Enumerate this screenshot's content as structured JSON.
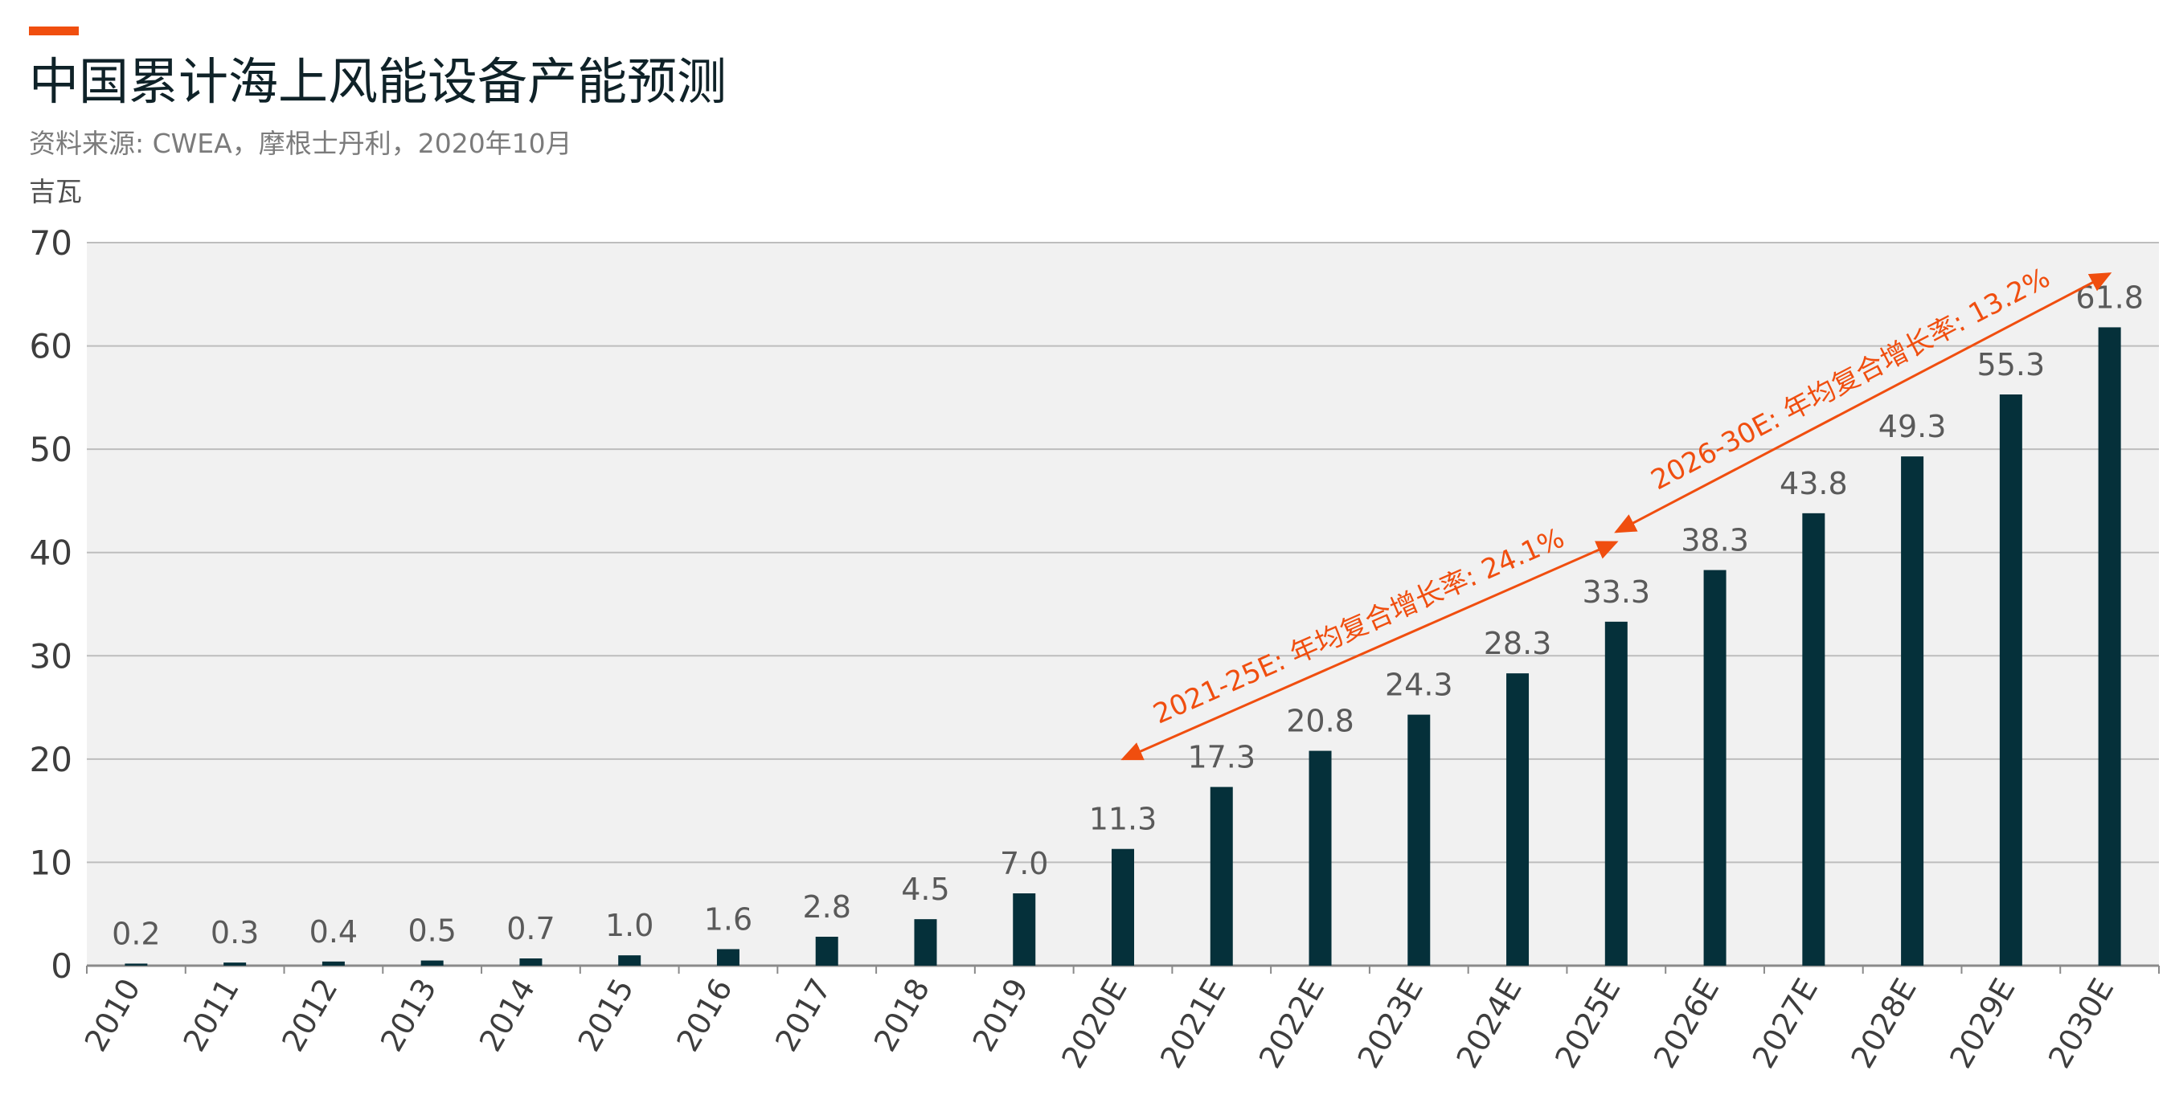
{
  "header": {
    "title": "中国累计海上风能设备产能预测",
    "source": "资料来源: CWEA，摩根士丹利，2020年10月",
    "unit": "吉瓦"
  },
  "colors": {
    "accent": "#f04e0f",
    "bar": "#05303a",
    "plot_background": "#f1f1f1",
    "grid": "#bdbdbd"
  },
  "chart_data": {
    "type": "bar",
    "categories": [
      "2010",
      "2011",
      "2012",
      "2013",
      "2014",
      "2015",
      "2016",
      "2017",
      "2018",
      "2019",
      "2020E",
      "2021E",
      "2022E",
      "2023E",
      "2024E",
      "2025E",
      "2026E",
      "2027E",
      "2028E",
      "2029E",
      "2030E"
    ],
    "values": [
      0.2,
      0.3,
      0.4,
      0.5,
      0.7,
      1.0,
      1.6,
      2.8,
      4.5,
      7.0,
      11.3,
      17.3,
      20.8,
      24.3,
      28.3,
      33.3,
      38.3,
      43.8,
      49.3,
      55.3,
      61.8
    ],
    "value_labels": [
      "0.2",
      "0.3",
      "0.4",
      "0.5",
      "0.7",
      "1.0",
      "1.6",
      "2.8",
      "4.5",
      "7.0",
      "11.3",
      "17.3",
      "20.8",
      "24.3",
      "28.3",
      "33.3",
      "38.3",
      "43.8",
      "49.3",
      "55.3",
      "61.8"
    ],
    "ylabel": "吉瓦",
    "ylim": [
      0,
      70
    ],
    "yticks": [
      0,
      10,
      20,
      30,
      40,
      50,
      60,
      70
    ],
    "grid": true,
    "annotations": [
      {
        "text": "2021-25E: 年均复合增长率: 24.1%",
        "from": {
          "x": "2020E",
          "y": 20
        },
        "to": {
          "x": "2025E",
          "y": 41
        }
      },
      {
        "text": "2026-30E: 年均复合增长率: 13.2%",
        "from": {
          "x": "2025E",
          "y": 42
        },
        "to": {
          "x": "2030E",
          "y": 67
        }
      }
    ]
  }
}
